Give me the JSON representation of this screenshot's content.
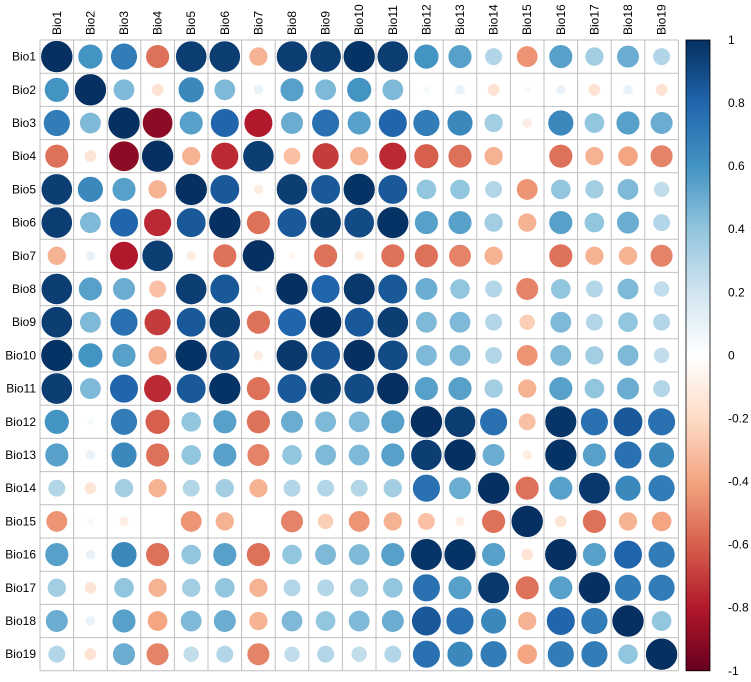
{
  "chart_data": {
    "type": "heatmap",
    "title": "",
    "variables": [
      "Bio1",
      "Bio2",
      "Bio3",
      "Bio4",
      "Bio5",
      "Bio6",
      "Bio7",
      "Bio8",
      "Bio9",
      "Bio10",
      "Bio11",
      "Bio12",
      "Bio13",
      "Bio14",
      "Bio15",
      "Bio16",
      "Bio17",
      "Bio18",
      "Bio19"
    ],
    "matrix": [
      [
        1.0,
        0.6,
        0.7,
        -0.55,
        0.95,
        0.95,
        -0.35,
        0.95,
        0.95,
        0.99,
        0.95,
        0.6,
        0.55,
        0.3,
        -0.45,
        0.55,
        0.35,
        0.5,
        0.3
      ],
      [
        0.6,
        1.0,
        0.45,
        -0.15,
        0.65,
        0.45,
        0.1,
        0.55,
        0.45,
        0.6,
        0.45,
        0.05,
        0.1,
        -0.15,
        0.05,
        0.1,
        -0.15,
        0.1,
        -0.15
      ],
      [
        0.7,
        0.45,
        1.0,
        -0.9,
        0.55,
        0.8,
        -0.8,
        0.5,
        0.75,
        0.55,
        0.8,
        0.7,
        0.65,
        0.35,
        -0.1,
        0.65,
        0.4,
        0.55,
        0.5
      ],
      [
        -0.55,
        -0.15,
        -0.9,
        1.0,
        -0.35,
        -0.75,
        0.95,
        -0.3,
        -0.7,
        -0.35,
        -0.75,
        -0.6,
        -0.55,
        -0.35,
        0.0,
        -0.55,
        -0.35,
        -0.4,
        -0.5
      ],
      [
        0.95,
        0.65,
        0.55,
        -0.35,
        1.0,
        0.85,
        -0.1,
        0.95,
        0.85,
        0.99,
        0.85,
        0.4,
        0.4,
        0.3,
        -0.45,
        0.4,
        0.35,
        0.45,
        0.25
      ],
      [
        0.95,
        0.45,
        0.8,
        -0.75,
        0.85,
        1.0,
        -0.55,
        0.85,
        0.95,
        0.9,
        0.99,
        0.55,
        0.55,
        0.35,
        -0.35,
        0.55,
        0.4,
        0.5,
        0.3
      ],
      [
        -0.35,
        0.1,
        -0.8,
        0.95,
        -0.1,
        -0.55,
        1.0,
        -0.05,
        -0.55,
        -0.1,
        -0.55,
        -0.55,
        -0.5,
        -0.35,
        0.0,
        -0.55,
        -0.35,
        -0.35,
        -0.5
      ],
      [
        0.95,
        0.55,
        0.5,
        -0.3,
        0.95,
        0.85,
        -0.05,
        1.0,
        0.8,
        0.97,
        0.85,
        0.5,
        0.4,
        0.3,
        -0.5,
        0.4,
        0.3,
        0.45,
        0.25
      ],
      [
        0.95,
        0.45,
        0.75,
        -0.7,
        0.85,
        0.95,
        -0.55,
        0.8,
        1.0,
        0.85,
        0.95,
        0.45,
        0.45,
        0.3,
        -0.25,
        0.45,
        0.3,
        0.4,
        0.3
      ],
      [
        0.99,
        0.6,
        0.55,
        -0.35,
        0.99,
        0.9,
        -0.1,
        0.97,
        0.85,
        1.0,
        0.9,
        0.45,
        0.45,
        0.3,
        -0.45,
        0.45,
        0.35,
        0.45,
        0.25
      ],
      [
        0.95,
        0.45,
        0.8,
        -0.75,
        0.85,
        0.99,
        -0.55,
        0.85,
        0.95,
        0.9,
        1.0,
        0.55,
        0.55,
        0.35,
        -0.35,
        0.55,
        0.4,
        0.5,
        0.3
      ],
      [
        0.6,
        0.05,
        0.7,
        -0.6,
        0.4,
        0.55,
        -0.55,
        0.5,
        0.45,
        0.45,
        0.55,
        1.0,
        0.95,
        0.75,
        -0.3,
        0.98,
        0.75,
        0.85,
        0.75
      ],
      [
        0.55,
        0.1,
        0.65,
        -0.55,
        0.4,
        0.55,
        -0.5,
        0.4,
        0.45,
        0.45,
        0.55,
        0.95,
        1.0,
        0.5,
        -0.1,
        0.99,
        0.55,
        0.75,
        0.65
      ],
      [
        0.3,
        -0.15,
        0.35,
        -0.35,
        0.3,
        0.35,
        -0.35,
        0.3,
        0.3,
        0.3,
        0.35,
        0.75,
        0.5,
        1.0,
        -0.55,
        0.55,
        0.97,
        0.65,
        0.7
      ],
      [
        -0.45,
        0.05,
        -0.1,
        0.0,
        -0.45,
        -0.35,
        0.0,
        -0.5,
        -0.25,
        -0.45,
        -0.35,
        -0.3,
        -0.1,
        -0.55,
        1.0,
        -0.15,
        -0.55,
        -0.35,
        -0.4
      ],
      [
        0.55,
        0.1,
        0.65,
        -0.55,
        0.4,
        0.55,
        -0.55,
        0.4,
        0.45,
        0.45,
        0.55,
        0.98,
        0.99,
        0.55,
        -0.15,
        1.0,
        0.55,
        0.8,
        0.7
      ],
      [
        0.35,
        -0.15,
        0.4,
        -0.35,
        0.35,
        0.4,
        -0.35,
        0.3,
        0.3,
        0.35,
        0.4,
        0.75,
        0.55,
        0.97,
        -0.55,
        0.55,
        1.0,
        0.7,
        0.7
      ],
      [
        0.5,
        0.1,
        0.55,
        -0.4,
        0.45,
        0.5,
        -0.35,
        0.45,
        0.4,
        0.45,
        0.5,
        0.85,
        0.75,
        0.65,
        -0.35,
        0.8,
        0.7,
        1.0,
        0.4
      ],
      [
        0.3,
        -0.15,
        0.5,
        -0.5,
        0.25,
        0.3,
        -0.5,
        0.25,
        0.3,
        0.25,
        0.3,
        0.75,
        0.65,
        0.7,
        -0.4,
        0.7,
        0.7,
        0.4,
        1.0
      ]
    ],
    "colorbar": {
      "ticks": [
        1,
        0.8,
        0.6,
        0.4,
        0.2,
        0,
        -0.2,
        -0.4,
        -0.6,
        -0.8,
        -1
      ],
      "tick_labels": [
        "1",
        "0.8",
        "0.6",
        "0.4",
        "0.2",
        "0",
        "-0.2",
        "-0.4",
        "-0.6",
        "-0.8",
        "-1"
      ],
      "range": [
        -1,
        1
      ]
    },
    "colors": {
      "palette": [
        "#67001F",
        "#B2182B",
        "#D6604D",
        "#F4A582",
        "#FDDBC7",
        "#FFFFFF",
        "#D1E5F0",
        "#92C5DE",
        "#4393C3",
        "#2166AC",
        "#053061"
      ],
      "grid": "#bfbfbf",
      "border": "#000000"
    },
    "glyph": "circle",
    "grid": true,
    "legend_placement": "right"
  }
}
